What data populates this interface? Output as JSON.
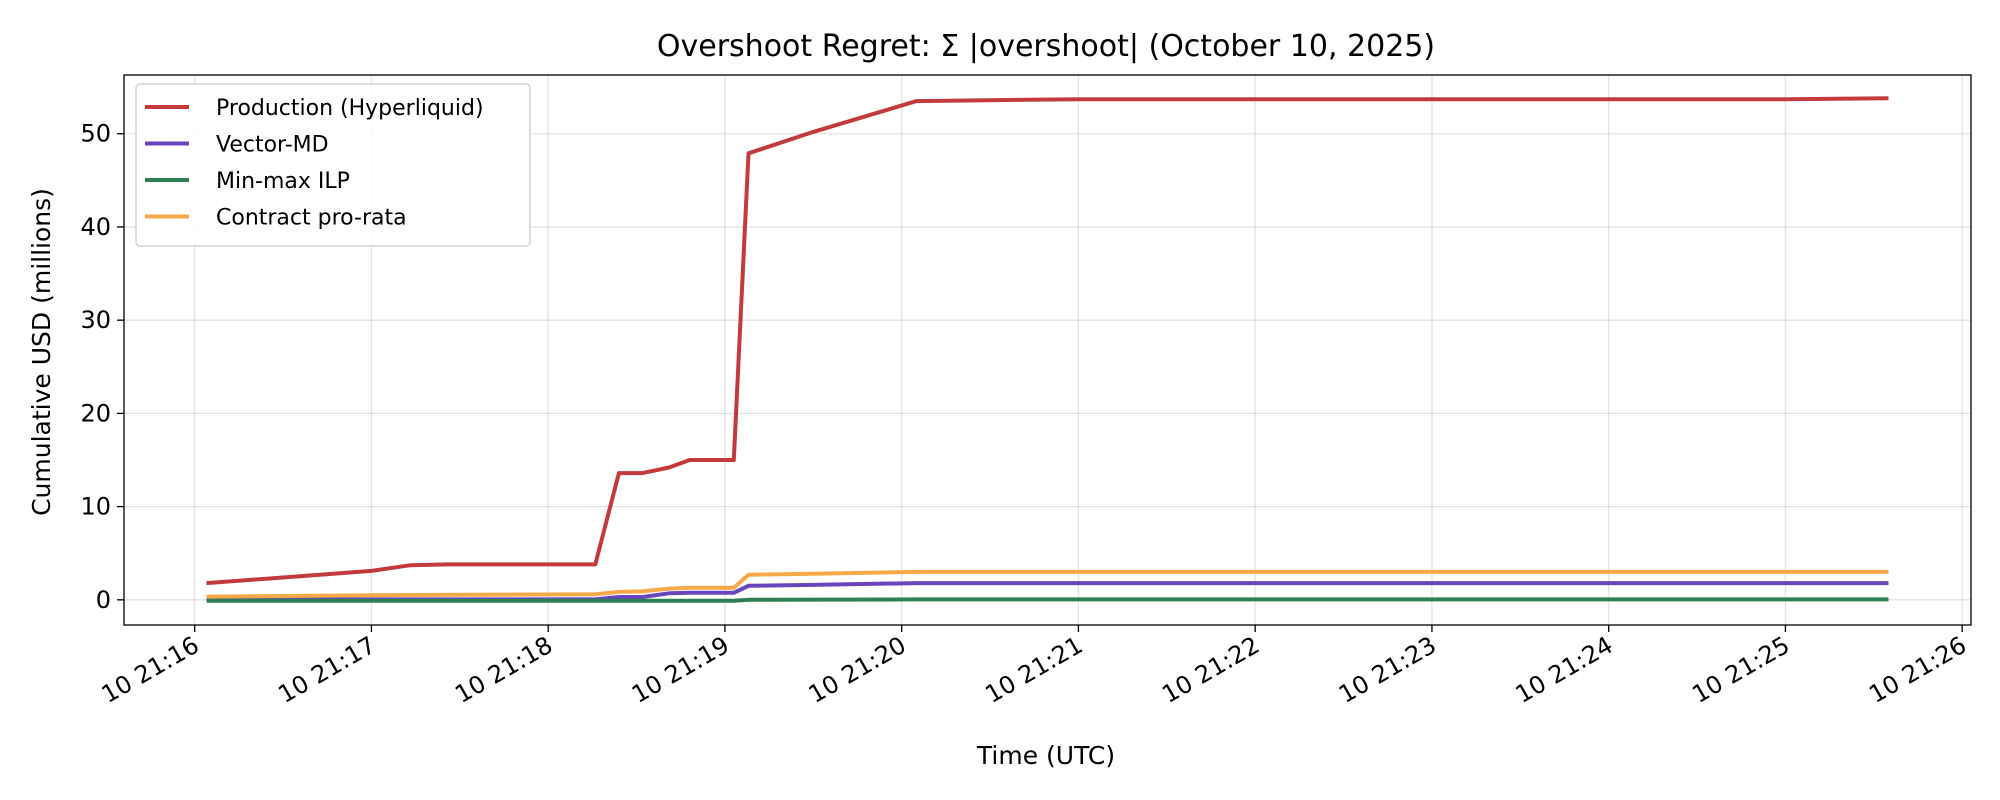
{
  "chart_data": {
    "type": "line",
    "title": "Overshoot Regret: Σ |overshoot| (October 10, 2025)",
    "xlabel": "Time (UTC)",
    "ylabel": "Cumulative USD (millions)",
    "xlim": [
      "21:15:36",
      "21:26:03"
    ],
    "ylim": [
      -2.7,
      56.3
    ],
    "grid": true,
    "legend_position": "upper left",
    "x_ticks": [
      {
        "t": "21:16:00",
        "label": "10 21:16"
      },
      {
        "t": "21:17:00",
        "label": "10 21:17"
      },
      {
        "t": "21:18:00",
        "label": "10 21:18"
      },
      {
        "t": "21:19:00",
        "label": "10 21:19"
      },
      {
        "t": "21:20:00",
        "label": "10 21:20"
      },
      {
        "t": "21:21:00",
        "label": "10 21:21"
      },
      {
        "t": "21:22:00",
        "label": "10 21:22"
      },
      {
        "t": "21:23:00",
        "label": "10 21:23"
      },
      {
        "t": "21:24:00",
        "label": "10 21:24"
      },
      {
        "t": "21:25:00",
        "label": "10 21:25"
      },
      {
        "t": "21:26:00",
        "label": "10 21:26"
      }
    ],
    "y_ticks": [
      0,
      10,
      20,
      30,
      40,
      50
    ],
    "series": [
      {
        "name": "Production (Hyperliquid)",
        "color": "#c43a3a",
        "points": [
          [
            "21:16:04",
            1.8
          ],
          [
            "21:16:30",
            2.4
          ],
          [
            "21:17:00",
            3.1
          ],
          [
            "21:17:13",
            3.7
          ],
          [
            "21:17:26",
            3.8
          ],
          [
            "21:18:00",
            3.8
          ],
          [
            "21:18:16",
            3.8
          ],
          [
            "21:18:24",
            13.6
          ],
          [
            "21:18:32",
            13.6
          ],
          [
            "21:18:41",
            14.2
          ],
          [
            "21:18:48",
            15.0
          ],
          [
            "21:19:03",
            15.0
          ],
          [
            "21:19:08",
            47.9
          ],
          [
            "21:19:30",
            50.2
          ],
          [
            "21:20:05",
            53.5
          ],
          [
            "21:21:00",
            53.7
          ],
          [
            "21:22:00",
            53.7
          ],
          [
            "21:23:00",
            53.7
          ],
          [
            "21:24:00",
            53.7
          ],
          [
            "21:25:00",
            53.7
          ],
          [
            "21:25:35",
            53.8
          ]
        ]
      },
      {
        "name": "Vector-MD",
        "color": "#6a44bd",
        "points": [
          [
            "21:16:04",
            0.05
          ],
          [
            "21:18:16",
            0.05
          ],
          [
            "21:18:24",
            0.3
          ],
          [
            "21:18:32",
            0.3
          ],
          [
            "21:18:41",
            0.7
          ],
          [
            "21:18:48",
            0.75
          ],
          [
            "21:19:03",
            0.75
          ],
          [
            "21:19:08",
            1.5
          ],
          [
            "21:19:30",
            1.6
          ],
          [
            "21:20:05",
            1.8
          ],
          [
            "21:21:00",
            1.8
          ],
          [
            "21:23:00",
            1.8
          ],
          [
            "21:25:35",
            1.8
          ]
        ]
      },
      {
        "name": "Min-max ILP",
        "color": "#2f7f54",
        "points": [
          [
            "21:16:04",
            -0.1
          ],
          [
            "21:19:03",
            -0.1
          ],
          [
            "21:19:08",
            0.0
          ],
          [
            "21:20:05",
            0.05
          ],
          [
            "21:25:35",
            0.05
          ]
        ]
      },
      {
        "name": "Contract pro-rata",
        "color": "#f7a94a",
        "points": [
          [
            "21:16:04",
            0.35
          ],
          [
            "21:17:00",
            0.5
          ],
          [
            "21:18:16",
            0.6
          ],
          [
            "21:18:24",
            0.85
          ],
          [
            "21:18:32",
            0.9
          ],
          [
            "21:18:41",
            1.2
          ],
          [
            "21:18:48",
            1.3
          ],
          [
            "21:19:03",
            1.3
          ],
          [
            "21:19:08",
            2.7
          ],
          [
            "21:19:30",
            2.8
          ],
          [
            "21:20:05",
            3.0
          ],
          [
            "21:21:00",
            3.0
          ],
          [
            "21:23:00",
            3.0
          ],
          [
            "21:25:35",
            3.0
          ]
        ]
      }
    ]
  }
}
